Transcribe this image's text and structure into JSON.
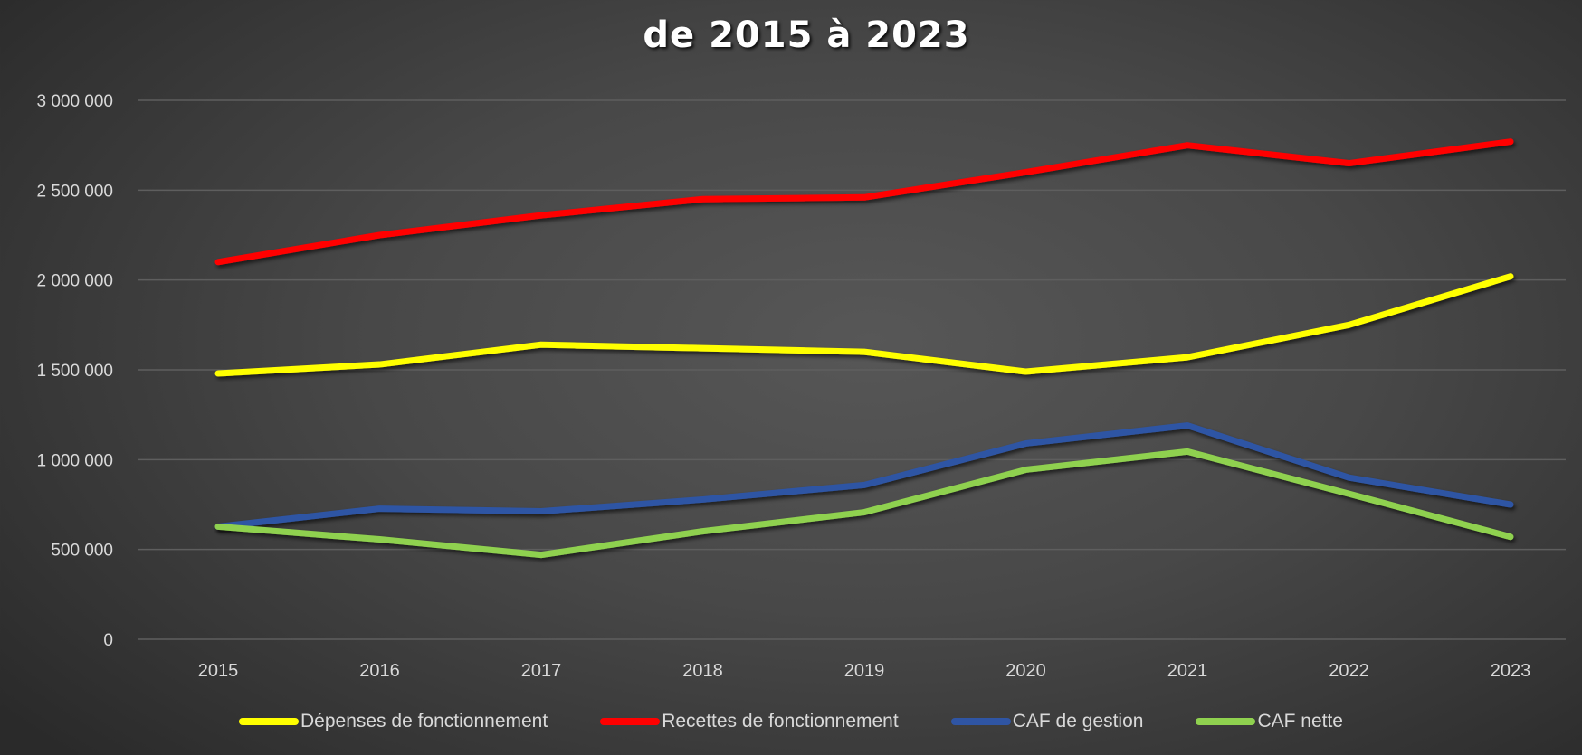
{
  "chart_data": {
    "type": "line",
    "title": "de 2015 à 2023",
    "xlabel": "",
    "ylabel": "",
    "categories": [
      "2015",
      "2016",
      "2017",
      "2018",
      "2019",
      "2020",
      "2021",
      "2022",
      "2023"
    ],
    "ylim": [
      0,
      3000000
    ],
    "yticks": [
      0,
      500000,
      1000000,
      1500000,
      2000000,
      2500000,
      3000000
    ],
    "ytick_labels": [
      "0",
      "500 000",
      "1 000 000",
      "1 500 000",
      "2 000 000",
      "2 500 000",
      "3 000 000"
    ],
    "grid": true,
    "legend_position": "bottom",
    "series": [
      {
        "name": "Dépenses de fonctionnement",
        "color": "#ffff00",
        "values": [
          1480000,
          1530000,
          1640000,
          1620000,
          1600000,
          1490000,
          1570000,
          1750000,
          2020000
        ]
      },
      {
        "name": "Recettes de fonctionnement",
        "color": "#ff0000",
        "values": [
          2100000,
          2250000,
          2360000,
          2450000,
          2460000,
          2600000,
          2750000,
          2650000,
          2770000
        ]
      },
      {
        "name": "CAF de gestion",
        "color": "#2f55a4",
        "values": [
          627000,
          727000,
          712000,
          778000,
          859000,
          1090000,
          1190000,
          900000,
          750000
        ]
      },
      {
        "name": "CAF nette",
        "color": "#8fd14f",
        "values": [
          627000,
          556000,
          470000,
          601000,
          707000,
          944000,
          1045000,
          810000,
          570000
        ]
      }
    ]
  }
}
